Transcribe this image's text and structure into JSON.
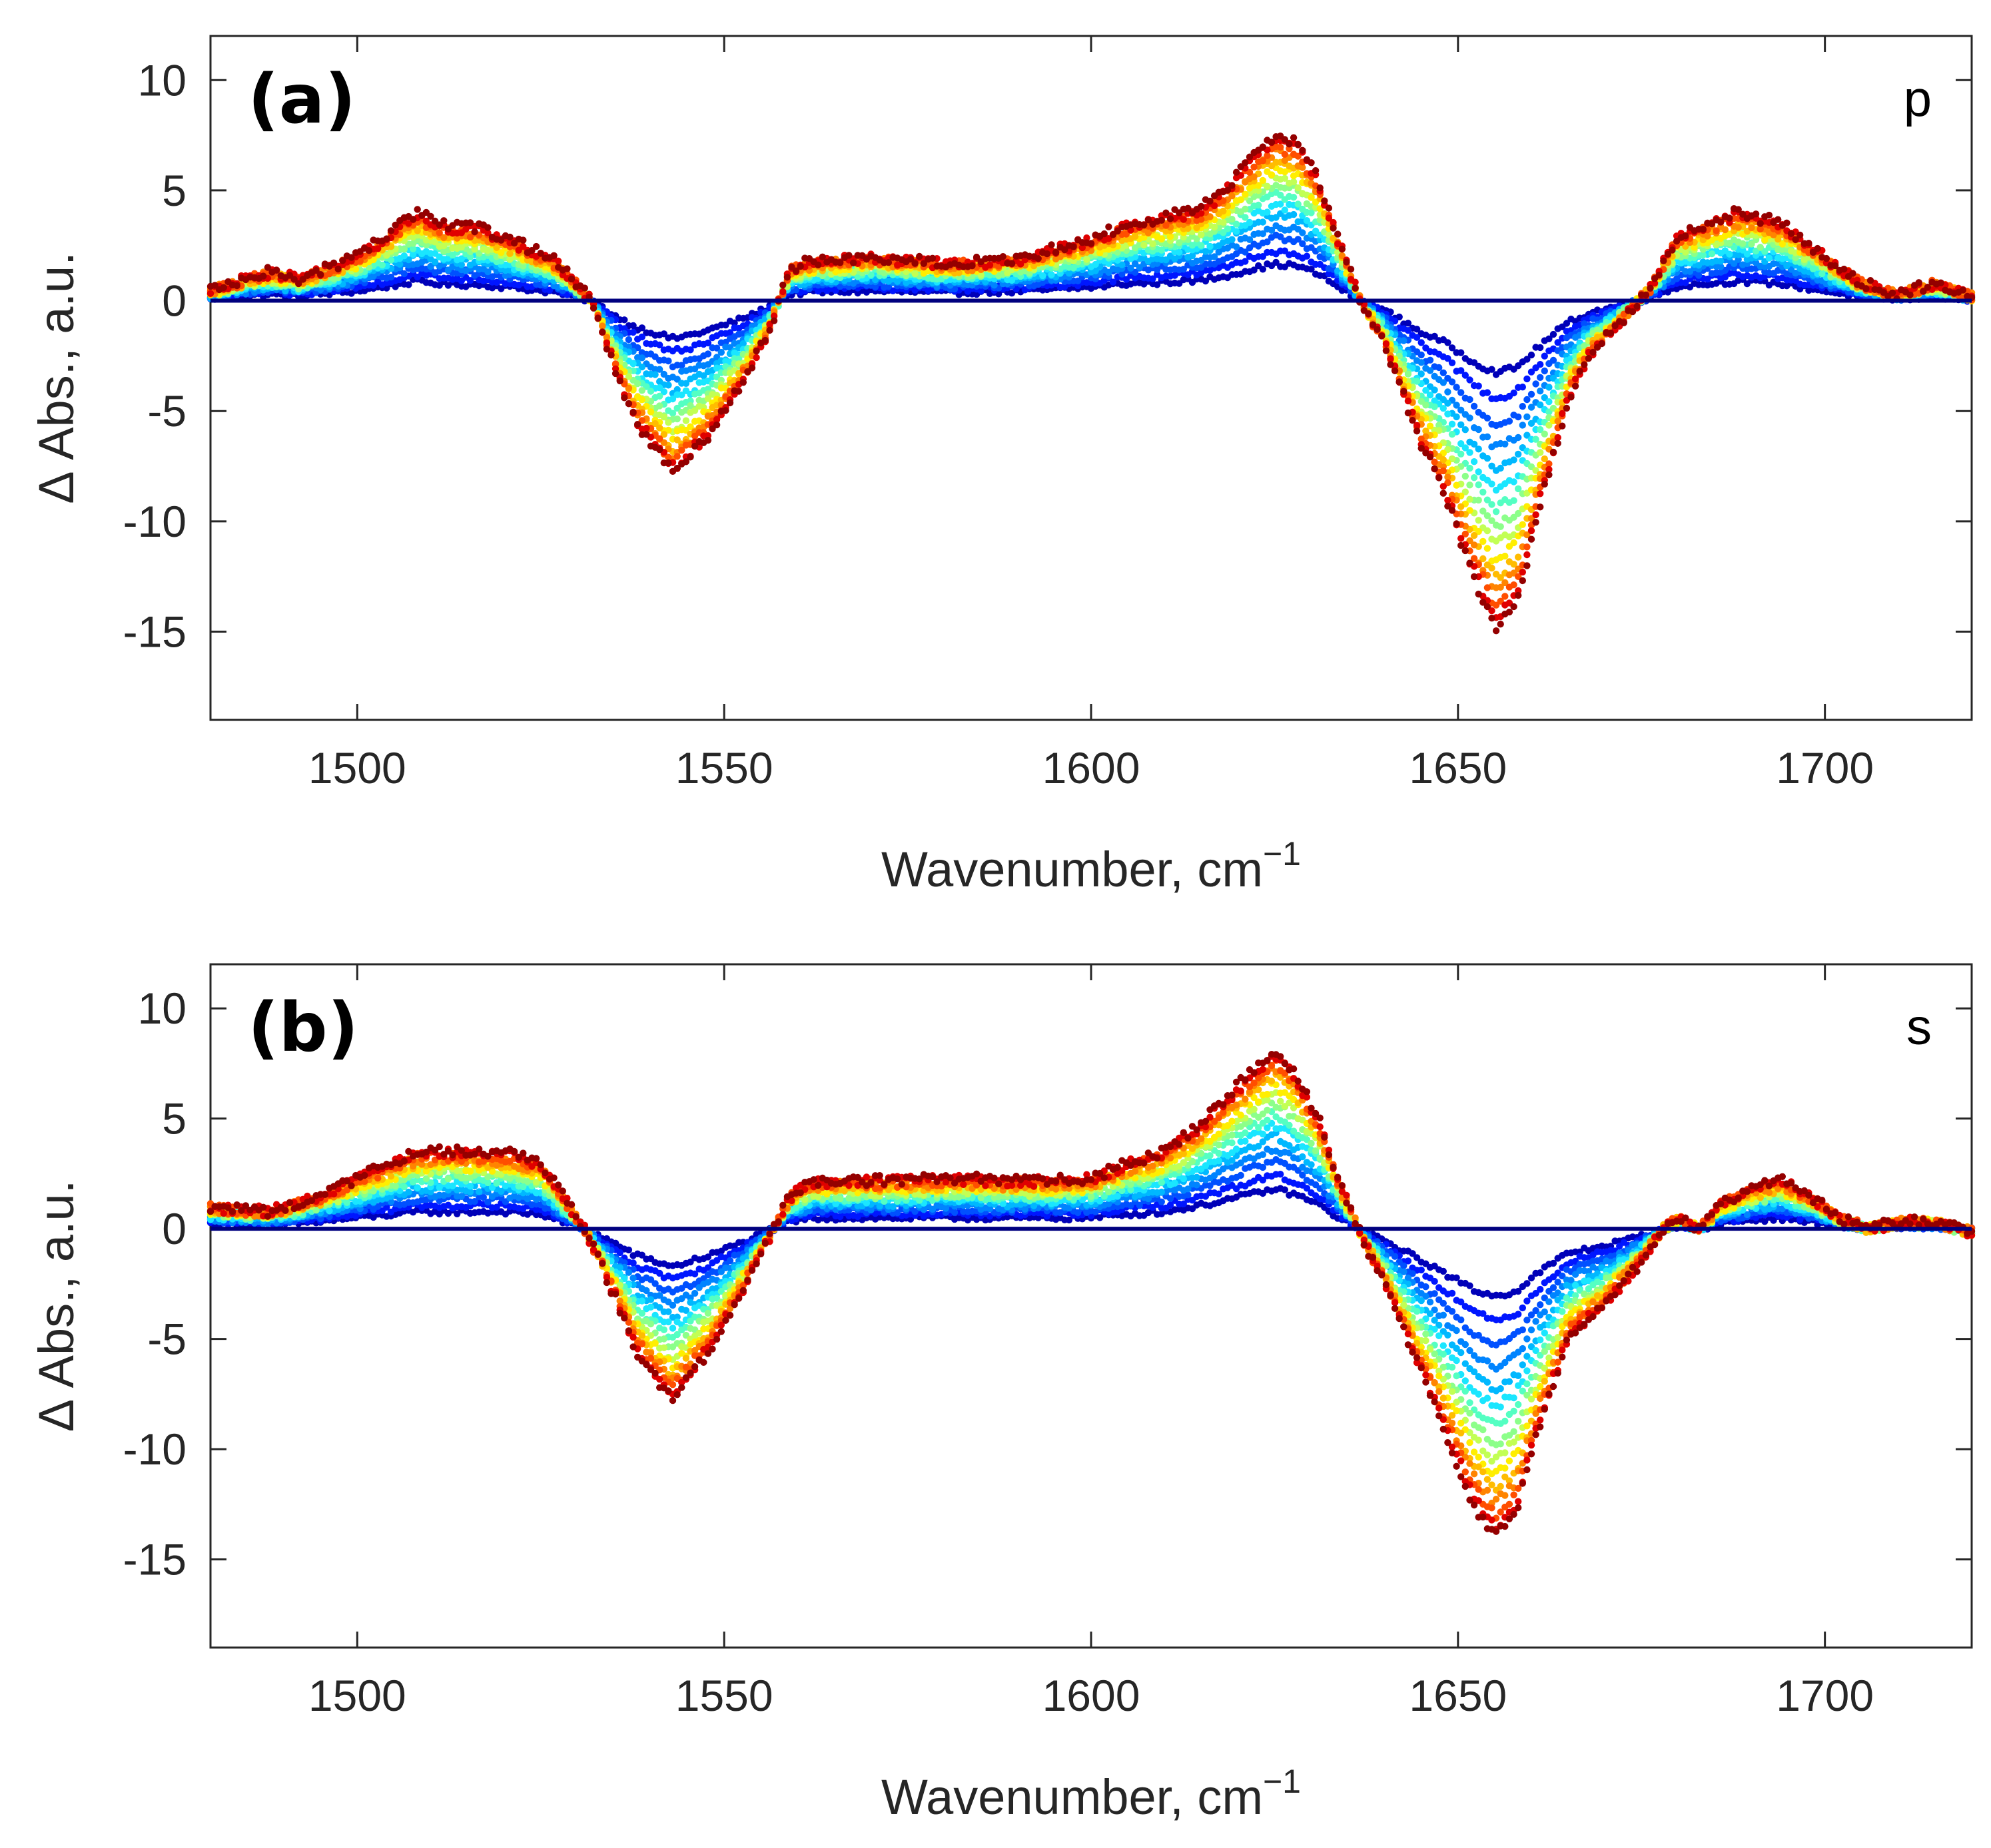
{
  "chart_data": [
    {
      "type": "scatter",
      "panel_label": "(a)",
      "polarization": "p",
      "xlabel": "Wavenumber, cm",
      "xlabel_superscript": "−1",
      "ylabel": "Δ Abs., a.u.",
      "xlim": [
        1480,
        1720
      ],
      "ylim": [
        -19,
        12
      ],
      "xticks": [
        1500,
        1550,
        1600,
        1650,
        1700
      ],
      "yticks": [
        10,
        5,
        0,
        -5,
        -10,
        -15
      ],
      "xtick_labels": [
        "1500",
        "1550",
        "1600",
        "1650",
        "1700"
      ],
      "ytick_labels": [
        "10",
        "5",
        "0",
        "-5",
        "-10",
        "-15"
      ],
      "legend": "none",
      "series_note": "16 time-resolved difference spectra; colour runs from dark blue (earliest) to dark red (latest); amplitude scale of each series relative to the final spectrum",
      "series_scales": [
        0.0,
        0.22,
        0.3,
        0.38,
        0.45,
        0.52,
        0.58,
        0.64,
        0.7,
        0.75,
        0.8,
        0.85,
        0.89,
        0.93,
        0.97,
        1.0
      ],
      "series_colors": [
        "#00007f",
        "#0000b8",
        "#0016ff",
        "#0050ff",
        "#0084ff",
        "#00b8ff",
        "#1ae6ff",
        "#54ffc2",
        "#8cff8a",
        "#c2ff54",
        "#ffee00",
        "#ffbc00",
        "#ff8400",
        "#ff4e00",
        "#e00000",
        "#940000"
      ],
      "final_spectrum": {
        "x": [
          1480,
          1488,
          1492,
          1500,
          1505,
          1508,
          1512,
          1517,
          1522,
          1527,
          1532,
          1535,
          1538,
          1543,
          1547,
          1552,
          1556,
          1559,
          1562,
          1570,
          1580,
          1590,
          1600,
          1605,
          1610,
          1615,
          1618,
          1622,
          1625,
          1628,
          1631,
          1634,
          1637,
          1640,
          1645,
          1648,
          1652,
          1655,
          1658,
          1661,
          1665,
          1668,
          1672,
          1676,
          1680,
          1684,
          1688,
          1694,
          1700,
          1705,
          1710,
          1715,
          1720
        ],
        "y": [
          0.5,
          1.3,
          1.0,
          2.0,
          3.2,
          4.0,
          3.4,
          3.3,
          2.6,
          1.8,
          0.0,
          -3.0,
          -5.5,
          -7.8,
          -6.5,
          -4.0,
          -1.5,
          1.5,
          1.8,
          2.0,
          1.7,
          1.9,
          2.8,
          3.5,
          3.8,
          4.2,
          5.0,
          6.5,
          7.5,
          7.2,
          5.5,
          2.5,
          -0.2,
          -2.0,
          -6.5,
          -8.5,
          -12.5,
          -14.8,
          -13.8,
          -9.5,
          -4.5,
          -2.5,
          -1.0,
          0.5,
          3.0,
          3.5,
          4.0,
          3.5,
          2.0,
          0.8,
          0.3,
          0.8,
          0.2
        ]
      }
    },
    {
      "type": "scatter",
      "panel_label": "(b)",
      "polarization": "s",
      "xlabel": "Wavenumber, cm",
      "xlabel_superscript": "−1",
      "ylabel": "Δ Abs., a.u.",
      "xlim": [
        1480,
        1720
      ],
      "ylim": [
        -19,
        12
      ],
      "xticks": [
        1500,
        1550,
        1600,
        1650,
        1700
      ],
      "yticks": [
        10,
        5,
        0,
        -5,
        -10,
        -15
      ],
      "xtick_labels": [
        "1500",
        "1550",
        "1600",
        "1650",
        "1700"
      ],
      "ytick_labels": [
        "10",
        "5",
        "0",
        "-5",
        "-10",
        "-15"
      ],
      "legend": "none",
      "series_note": "16 time-resolved difference spectra; colour runs from dark blue (earliest) to dark red (latest); amplitude scale of each series relative to the final spectrum",
      "series_scales": [
        0.0,
        0.22,
        0.3,
        0.38,
        0.45,
        0.52,
        0.58,
        0.64,
        0.7,
        0.75,
        0.8,
        0.85,
        0.89,
        0.93,
        0.97,
        1.0
      ],
      "series_colors": [
        "#00007f",
        "#0000b8",
        "#0016ff",
        "#0050ff",
        "#0084ff",
        "#00b8ff",
        "#1ae6ff",
        "#54ffc2",
        "#8cff8a",
        "#c2ff54",
        "#ffee00",
        "#ffbc00",
        "#ff8400",
        "#ff4e00",
        "#e00000",
        "#940000"
      ],
      "final_spectrum": {
        "x": [
          1480,
          1488,
          1495,
          1500,
          1505,
          1508,
          1512,
          1520,
          1525,
          1528,
          1531,
          1535,
          1538,
          1543,
          1548,
          1553,
          1556,
          1559,
          1562,
          1570,
          1580,
          1590,
          1600,
          1605,
          1610,
          1615,
          1620,
          1625,
          1628,
          1631,
          1634,
          1637,
          1640,
          1645,
          1648,
          1652,
          1655,
          1658,
          1661,
          1665,
          1670,
          1675,
          1678,
          1680,
          1683,
          1686,
          1690,
          1694,
          1698,
          1702,
          1706,
          1710,
          1715,
          1720
        ],
        "y": [
          1.0,
          0.8,
          1.5,
          2.3,
          3.0,
          3.5,
          3.5,
          3.5,
          3.0,
          1.5,
          0.0,
          -3.0,
          -5.5,
          -7.8,
          -5.5,
          -2.5,
          -0.5,
          1.5,
          2.2,
          2.2,
          2.3,
          2.2,
          2.3,
          3.0,
          3.5,
          4.8,
          6.5,
          8.2,
          7.0,
          5.0,
          2.0,
          -0.5,
          -2.5,
          -6.5,
          -9.0,
          -12.5,
          -14.0,
          -12.8,
          -9.0,
          -5.0,
          -3.5,
          -1.5,
          0.0,
          0.5,
          0.0,
          1.2,
          1.8,
          2.2,
          1.5,
          0.5,
          0.0,
          0.3,
          0.3,
          -0.2
        ]
      }
    }
  ]
}
